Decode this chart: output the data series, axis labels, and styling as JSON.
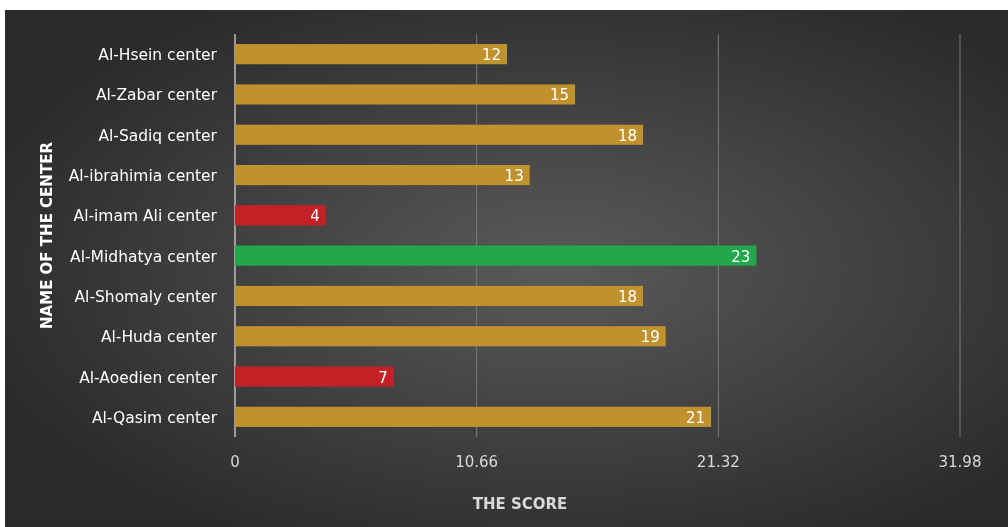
{
  "chart_data": {
    "type": "bar",
    "orientation": "horizontal",
    "xlabel": "THE SCORE",
    "ylabel": "NAME OF THE CENTER",
    "categories": [
      "Al-Hsein center",
      "Al-Zabar center",
      "Al-Sadiq center",
      "Al-ibrahimia center",
      "Al-imam Ali center",
      "Al-Midhatya center",
      "Al-Shomaly center",
      "Al-Huda center",
      "Al-Aoedien center",
      "Al-Qasim center"
    ],
    "values": [
      12,
      15,
      18,
      13,
      4,
      23,
      18,
      19,
      7,
      21
    ],
    "colors": [
      "#c0922e",
      "#c0922e",
      "#c0922e",
      "#c0922e",
      "#c42127",
      "#22a84a",
      "#c0922e",
      "#c0922e",
      "#c42127",
      "#c0922e"
    ],
    "xlim": [
      0,
      31.98
    ],
    "xticks": [
      0,
      10.66,
      21.32,
      31.98
    ],
    "grid": "x",
    "data_labels": true
  }
}
